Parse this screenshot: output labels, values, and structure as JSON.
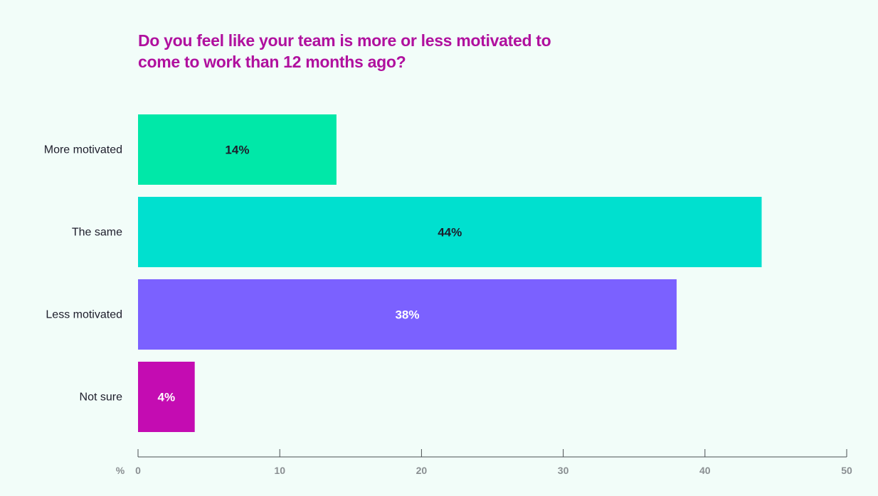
{
  "chart_data": {
    "type": "bar",
    "orientation": "horizontal",
    "title": "Do you feel like your team is more or less motivated to come to work than 12 months ago?",
    "categories": [
      "More motivated",
      "The same",
      "Less motivated",
      "Not sure"
    ],
    "values": [
      14,
      44,
      38,
      4
    ],
    "value_labels": [
      "14%",
      "44%",
      "38%",
      "4%"
    ],
    "bar_colors": [
      "#00e8a8",
      "#00e0cf",
      "#7b61ff",
      "#c40cb2"
    ],
    "label_colors": [
      "#1d1d2b",
      "#1d1d2b",
      "#ffffff",
      "#ffffff"
    ],
    "xlim": [
      0,
      50
    ],
    "x_ticks": [
      0,
      10,
      20,
      30,
      40,
      50
    ],
    "x_tick_labels": [
      "0",
      "10",
      "20",
      "30",
      "40",
      "50"
    ],
    "x_unit_label": "%",
    "xlabel": "",
    "ylabel": "",
    "grid": false,
    "legend": "none"
  }
}
